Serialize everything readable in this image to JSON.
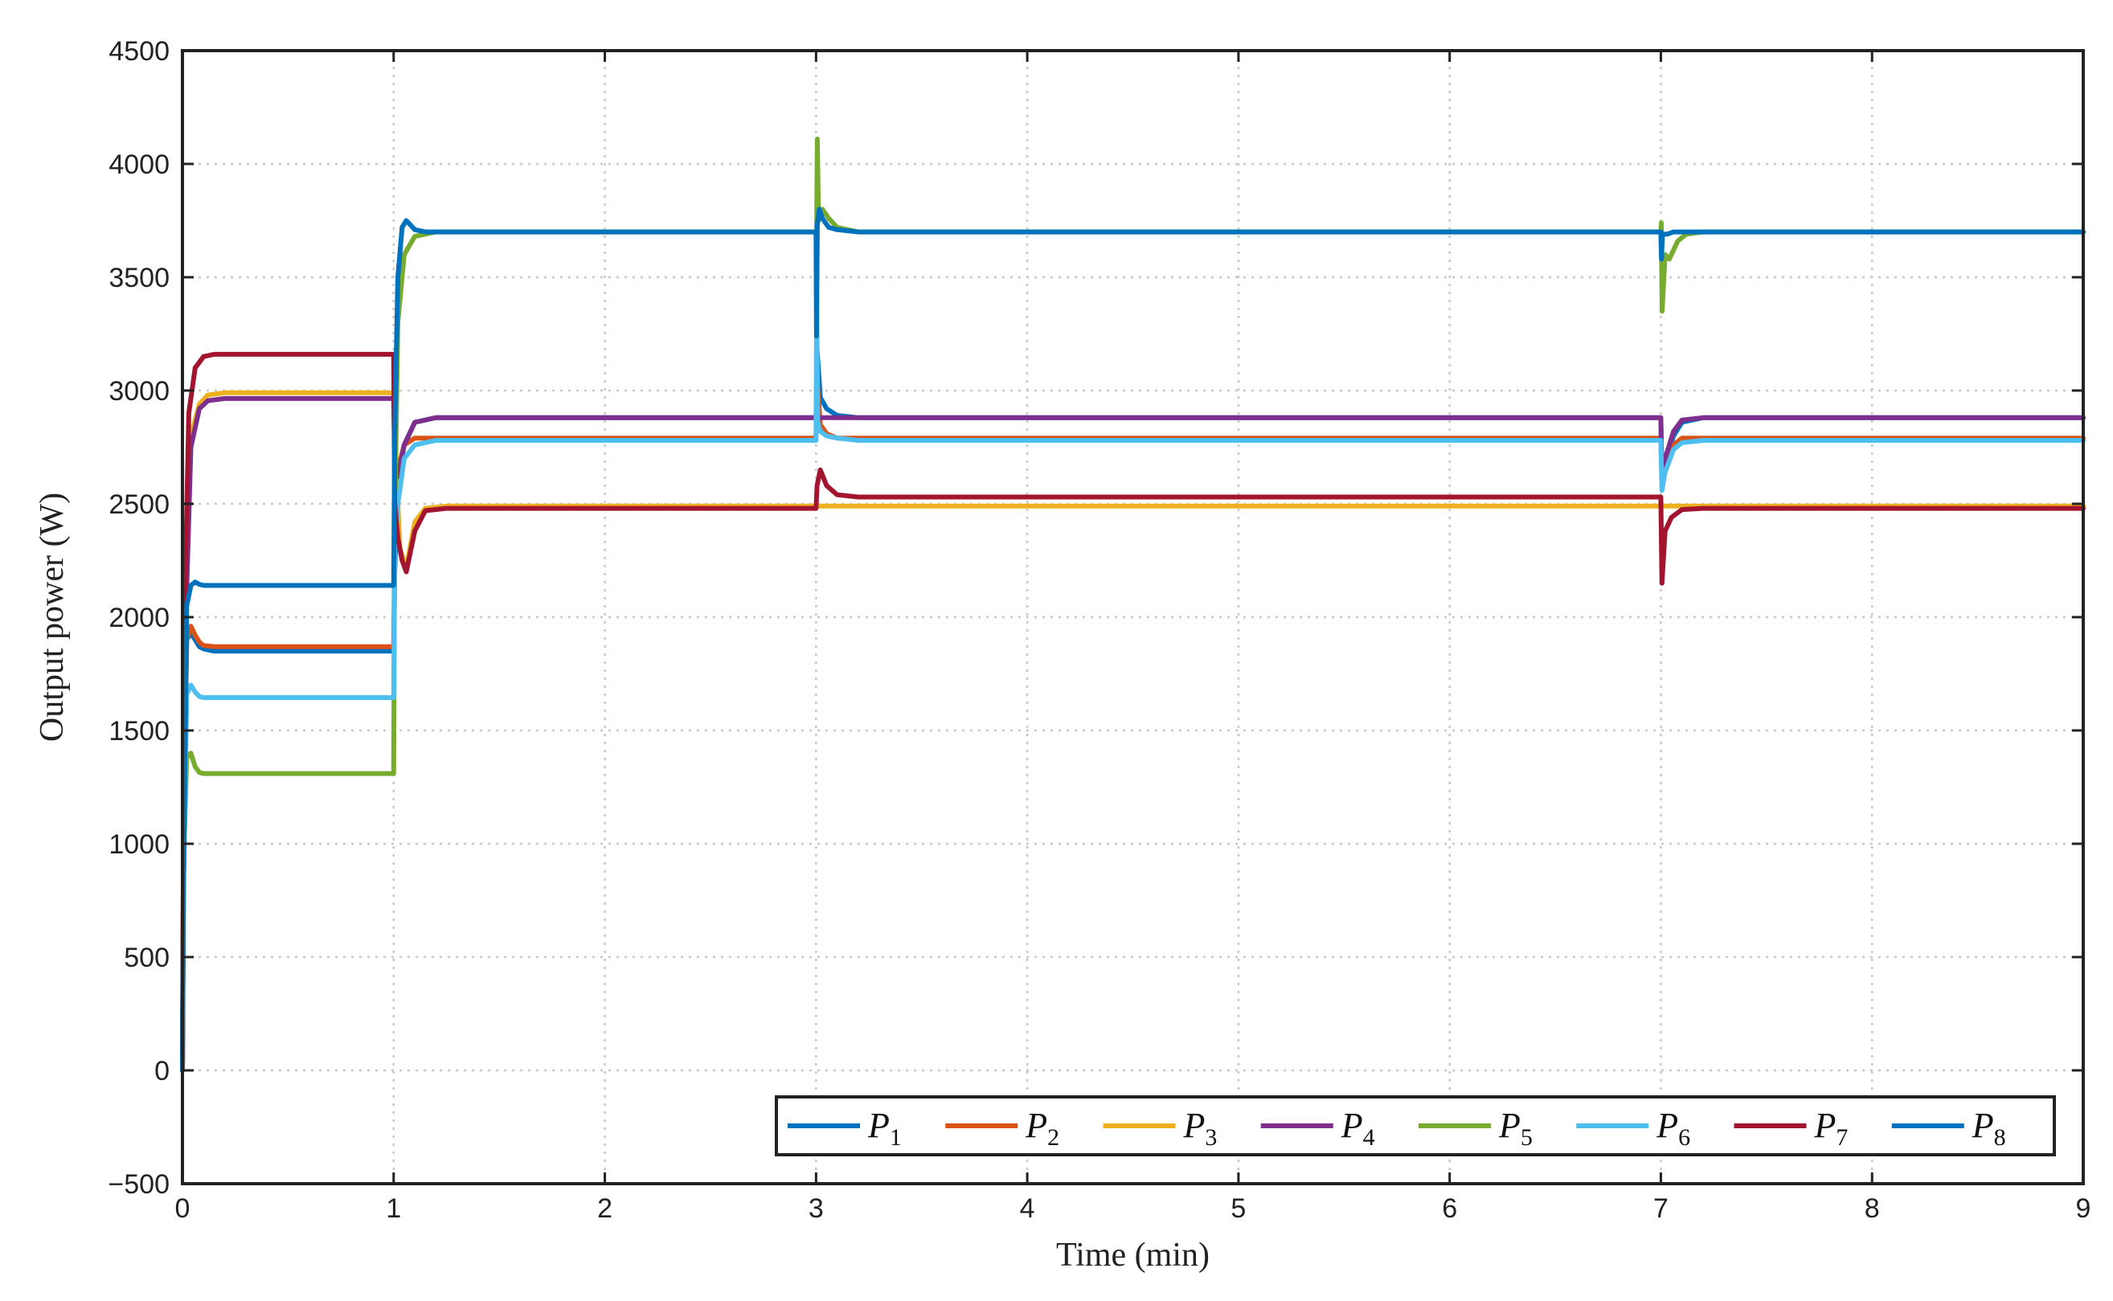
{
  "chart_data": {
    "type": "line",
    "xlabel": "Time (min)",
    "ylabel": "Output power (W)",
    "xlim": [
      0,
      9
    ],
    "ylim": [
      -500,
      4500
    ],
    "xticks": [
      0,
      1,
      2,
      3,
      4,
      5,
      6,
      7,
      8,
      9
    ],
    "yticks": [
      -500,
      0,
      500,
      1000,
      1500,
      2000,
      2500,
      3000,
      3500,
      4000,
      4500
    ],
    "ytick_labels": [
      "−500",
      "0",
      "500",
      "1000",
      "1500",
      "2000",
      "2500",
      "3000",
      "3500",
      "4000",
      "4500"
    ],
    "grid": true,
    "legend_position": "bottom-right",
    "series": [
      {
        "name": "P",
        "sub": "1",
        "color": "#0072BD",
        "x": [
          0,
          0.005,
          0.02,
          0.04,
          0.06,
          0.08,
          0.1,
          0.15,
          1.0,
          1.005,
          1.02,
          1.05,
          1.1,
          1.2,
          3.0,
          3.005,
          3.02,
          3.05,
          3.1,
          3.2,
          7.0,
          7.005,
          7.02,
          7.06,
          7.1,
          7.2,
          9.0
        ],
        "y": [
          0,
          1000,
          1900,
          1930,
          1900,
          1870,
          1860,
          1850,
          1850,
          2200,
          2600,
          2760,
          2860,
          2880,
          2880,
          3180,
          2970,
          2920,
          2890,
          2880,
          2880,
          2600,
          2680,
          2800,
          2860,
          2880,
          2880
        ]
      },
      {
        "name": "P",
        "sub": "2",
        "color": "#D95319",
        "x": [
          0,
          0.005,
          0.02,
          0.04,
          0.06,
          0.08,
          0.1,
          0.15,
          1.0,
          1.005,
          1.02,
          1.05,
          1.1,
          1.2,
          3.0,
          3.005,
          3.02,
          3.05,
          3.1,
          3.2,
          7.0,
          7.005,
          7.02,
          7.06,
          7.1,
          7.2,
          9.0
        ],
        "y": [
          0,
          1100,
          1900,
          1960,
          1920,
          1890,
          1875,
          1870,
          1870,
          2300,
          2650,
          2760,
          2790,
          2790,
          2790,
          3050,
          2850,
          2810,
          2790,
          2790,
          2790,
          2600,
          2660,
          2760,
          2790,
          2790,
          2790
        ]
      },
      {
        "name": "P",
        "sub": "3",
        "color": "#EDB120",
        "x": [
          0,
          0.01,
          0.04,
          0.08,
          0.12,
          0.2,
          0.4,
          1.0,
          1.005,
          1.03,
          1.06,
          1.1,
          1.15,
          1.25,
          3.0,
          7.0,
          9.0
        ],
        "y": [
          0,
          1800,
          2800,
          2940,
          2980,
          2990,
          2990,
          2990,
          2800,
          2300,
          2220,
          2420,
          2480,
          2490,
          2490,
          2490,
          2490
        ]
      },
      {
        "name": "P",
        "sub": "4",
        "color": "#7E2F8E",
        "x": [
          0,
          0.01,
          0.04,
          0.08,
          0.12,
          0.2,
          0.4,
          1.0,
          1.005,
          1.02,
          1.05,
          1.1,
          1.2,
          3.0,
          7.0,
          7.005,
          7.02,
          7.06,
          7.1,
          7.2,
          9.0
        ],
        "y": [
          0,
          1800,
          2750,
          2920,
          2955,
          2965,
          2965,
          2965,
          2700,
          2620,
          2760,
          2860,
          2880,
          2880,
          2880,
          2620,
          2700,
          2820,
          2870,
          2880,
          2880
        ]
      },
      {
        "name": "P",
        "sub": "5",
        "color": "#77AC30",
        "x": [
          0,
          0.005,
          0.02,
          0.04,
          0.06,
          0.08,
          0.1,
          0.15,
          1.0,
          1.005,
          1.02,
          1.05,
          1.1,
          1.2,
          3.0,
          3.002,
          3.006,
          3.012,
          3.03,
          3.06,
          3.1,
          3.2,
          7.0,
          7.002,
          7.006,
          7.02,
          7.04,
          7.08,
          7.12,
          7.2,
          9.0
        ],
        "y": [
          0,
          900,
          1380,
          1400,
          1340,
          1315,
          1310,
          1310,
          1310,
          2400,
          3300,
          3600,
          3680,
          3700,
          3700,
          3650,
          4110,
          3750,
          3800,
          3760,
          3720,
          3700,
          3700,
          3740,
          3350,
          3600,
          3580,
          3660,
          3690,
          3700,
          3700
        ]
      },
      {
        "name": "P",
        "sub": "6",
        "color": "#4DBEEE",
        "x": [
          0,
          0.005,
          0.02,
          0.04,
          0.06,
          0.08,
          0.1,
          0.15,
          1.0,
          1.005,
          1.02,
          1.05,
          1.1,
          1.2,
          3.0,
          3.003,
          3.008,
          3.02,
          3.05,
          3.1,
          3.2,
          7.0,
          7.005,
          7.02,
          7.06,
          7.1,
          7.2,
          9.0
        ],
        "y": [
          0,
          800,
          1660,
          1700,
          1670,
          1650,
          1645,
          1645,
          1645,
          2300,
          2500,
          2700,
          2760,
          2780,
          2780,
          3430,
          2860,
          2820,
          2800,
          2790,
          2780,
          2780,
          2560,
          2640,
          2740,
          2770,
          2780,
          2780
        ]
      },
      {
        "name": "P",
        "sub": "7",
        "color": "#A2142F",
        "x": [
          0,
          0.01,
          0.03,
          0.06,
          0.1,
          0.15,
          0.2,
          0.3,
          1.0,
          1.005,
          1.02,
          1.04,
          1.06,
          1.1,
          1.15,
          1.25,
          3.0,
          3.005,
          3.02,
          3.05,
          3.1,
          3.2,
          7.0,
          7.005,
          7.02,
          7.05,
          7.1,
          7.2,
          9.0
        ],
        "y": [
          0,
          2000,
          2900,
          3100,
          3150,
          3160,
          3160,
          3160,
          3160,
          2500,
          2350,
          2250,
          2200,
          2380,
          2470,
          2480,
          2480,
          2580,
          2650,
          2580,
          2540,
          2530,
          2530,
          2150,
          2380,
          2440,
          2475,
          2480,
          2480
        ]
      },
      {
        "name": "P",
        "sub": "8",
        "color": "#0072BD",
        "x": [
          0,
          0.005,
          0.02,
          0.04,
          0.06,
          0.08,
          0.1,
          0.15,
          1.0,
          1.005,
          1.02,
          1.04,
          1.06,
          1.08,
          1.1,
          1.15,
          1.2,
          3.0,
          3.002,
          3.006,
          3.015,
          3.03,
          3.06,
          3.1,
          3.2,
          7.0,
          7.003,
          7.008,
          7.03,
          7.06,
          7.1,
          7.2,
          9.0
        ],
        "y": [
          0,
          800,
          2050,
          2140,
          2155,
          2145,
          2140,
          2140,
          2140,
          2800,
          3500,
          3720,
          3750,
          3730,
          3710,
          3700,
          3700,
          3700,
          3240,
          3730,
          3800,
          3760,
          3720,
          3710,
          3700,
          3700,
          3580,
          3690,
          3690,
          3700,
          3700,
          3700,
          3700
        ]
      }
    ]
  }
}
